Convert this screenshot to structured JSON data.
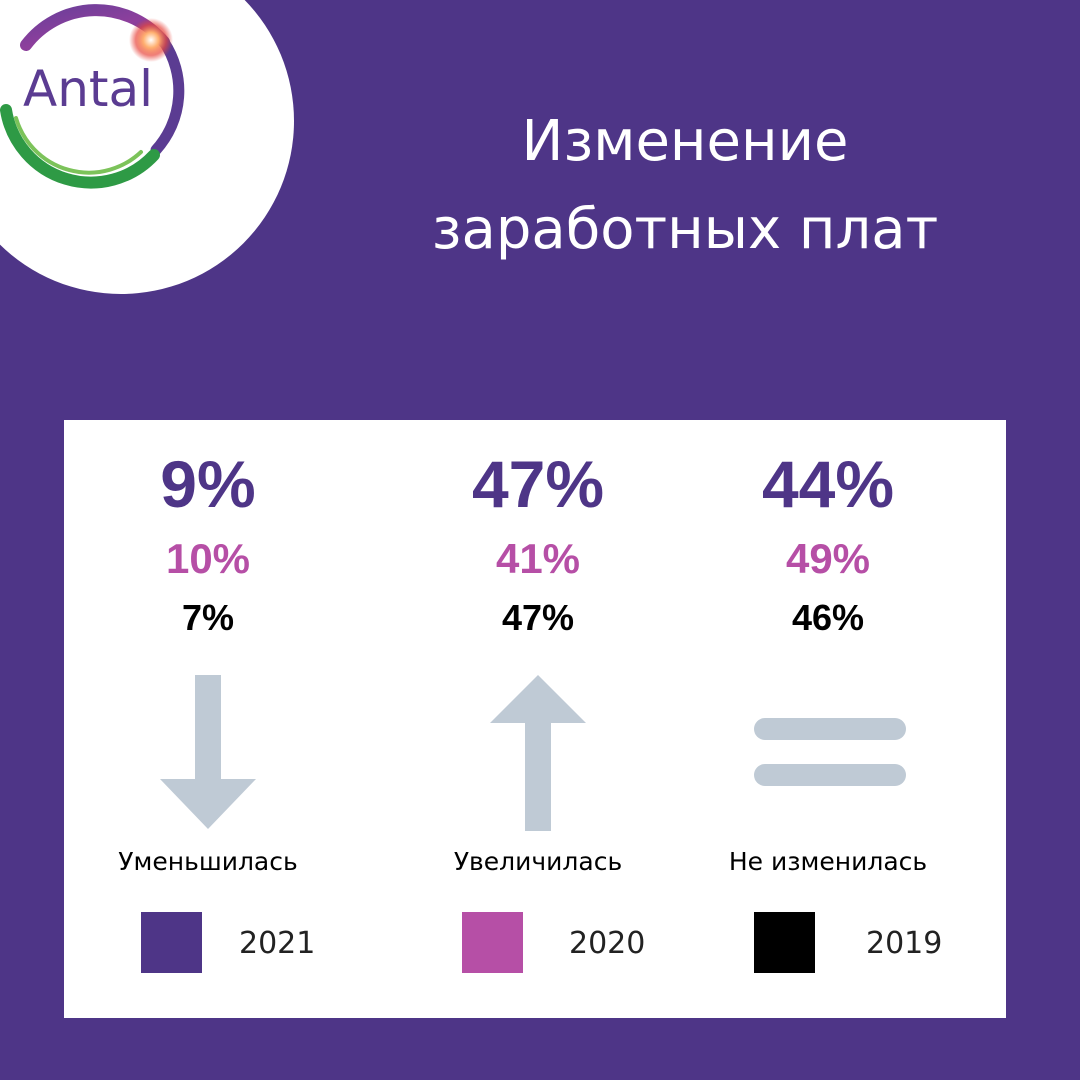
{
  "logo": {
    "text": "Antal"
  },
  "title": {
    "line1": "Изменение",
    "line2": "заработных плат"
  },
  "colors": {
    "background": "#4e3587",
    "y2021": "#4e3587",
    "y2020": "#b64fa6",
    "y2019": "#000000",
    "icon": "#bfcad5"
  },
  "stats": [
    {
      "v2021": "9%",
      "v2020": "10%",
      "v2019": "7%",
      "icon": "arrow-down-icon",
      "label": "Уменьшилась"
    },
    {
      "v2021": "47%",
      "v2020": "41%",
      "v2019": "47%",
      "icon": "arrow-up-icon",
      "label": "Увеличилась"
    },
    {
      "v2021": "44%",
      "v2020": "49%",
      "v2019": "46%",
      "icon": "equals-icon",
      "label": "Не изменилась"
    }
  ],
  "legend": [
    {
      "year": "2021",
      "color": "#4e3587"
    },
    {
      "year": "2020",
      "color": "#b64fa6"
    },
    {
      "year": "2019",
      "color": "#000000"
    }
  ]
}
